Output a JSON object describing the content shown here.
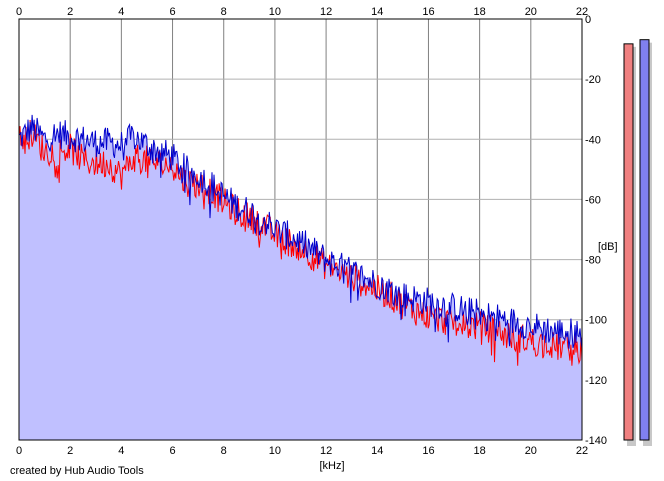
{
  "chart_data": {
    "type": "line",
    "title": "",
    "xlabel": "[kHz]",
    "ylabel": "[dB]",
    "xlim": [
      0,
      22
    ],
    "ylim": [
      -140,
      0
    ],
    "x_ticks": [
      0,
      2,
      4,
      6,
      8,
      10,
      12,
      14,
      16,
      18,
      20,
      22
    ],
    "x_tick_labels": [
      "0",
      "2",
      "4",
      "6",
      "8",
      "10",
      "12",
      "14",
      "16",
      "18",
      "20",
      "22"
    ],
    "y_ticks": [
      0,
      -20,
      -40,
      -60,
      -80,
      -100,
      -120,
      -140
    ],
    "y_tick_labels": [
      "0",
      "-20",
      "-40",
      "-60",
      "-80",
      "-100",
      "-120",
      "-140"
    ],
    "grid": true,
    "fill_color": "#c0c0ff",
    "series": [
      {
        "color": "#0000cc",
        "x": [
          0,
          0.5,
          1,
          1.5,
          2,
          2.5,
          3,
          3.5,
          4,
          4.5,
          5,
          5.5,
          6,
          6.5,
          7,
          7.5,
          8,
          8.5,
          9,
          9.5,
          10,
          10.5,
          11,
          11.5,
          12,
          12.5,
          13,
          13.5,
          14,
          14.5,
          15,
          15.5,
          16,
          16.5,
          17,
          17.5,
          18,
          18.5,
          19,
          19.5,
          20,
          20.5,
          21,
          21.5,
          22
        ],
        "values": [
          -40,
          -36,
          -40,
          -38,
          -39,
          -40,
          -41,
          -41,
          -42,
          -39,
          -42,
          -44,
          -46,
          -50,
          -52,
          -55,
          -59,
          -62,
          -64,
          -66,
          -70,
          -72,
          -74,
          -77,
          -80,
          -82,
          -84,
          -86,
          -88,
          -90,
          -92,
          -93,
          -94,
          -95,
          -96,
          -97,
          -98,
          -99,
          -100,
          -101,
          -102,
          -103,
          -104,
          -104,
          -105
        ]
      },
      {
        "color": "#ff0000",
        "x": [
          0,
          0.5,
          1,
          1.5,
          2,
          2.5,
          3,
          3.5,
          4,
          4.5,
          5,
          5.5,
          6,
          6.5,
          7,
          7.5,
          8,
          8.5,
          9,
          9.5,
          10,
          10.5,
          11,
          11.5,
          12,
          12.5,
          13,
          13.5,
          14,
          14.5,
          15,
          15.5,
          16,
          16.5,
          17,
          17.5,
          18,
          18.5,
          19,
          19.5,
          20,
          20.5,
          21,
          21.5,
          22
        ],
        "values": [
          -40,
          -38,
          -44,
          -44,
          -43,
          -47,
          -48,
          -48,
          -52,
          -46,
          -47,
          -48,
          -49,
          -54,
          -55,
          -57,
          -61,
          -64,
          -66,
          -68,
          -72,
          -74,
          -76,
          -79,
          -82,
          -84,
          -86,
          -88,
          -90,
          -92,
          -95,
          -97,
          -99,
          -100,
          -101,
          -102,
          -102,
          -103,
          -105,
          -106,
          -107,
          -108,
          -109,
          -109,
          -110
        ]
      }
    ],
    "meters": [
      {
        "color": "#f08080",
        "level": 0.95
      },
      {
        "color": "#8080f0",
        "level": 0.96
      }
    ]
  },
  "credit": "created by Hub Audio Tools"
}
